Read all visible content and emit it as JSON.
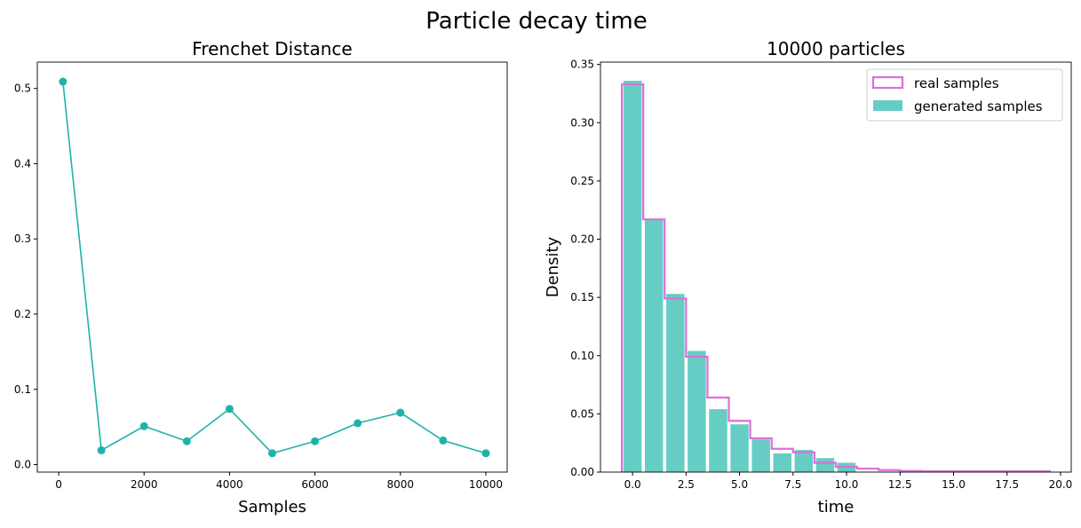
{
  "suptitle": "Particle decay time",
  "colors": {
    "teal": "#20b2aa",
    "hist": "#66cdc4",
    "step": "#da70d6"
  },
  "chart_data": [
    {
      "type": "line",
      "title": "Frenchet Distance",
      "xlabel": "Samples",
      "ylabel": "",
      "xlim": [
        -500,
        10500
      ],
      "ylim": [
        -0.01,
        0.535
      ],
      "xticks": [
        0,
        2000,
        4000,
        6000,
        8000,
        10000
      ],
      "yticks": [
        0.0,
        0.1,
        0.2,
        0.3,
        0.4,
        0.5
      ],
      "x": [
        100,
        1000,
        2000,
        3000,
        4000,
        5000,
        6000,
        7000,
        8000,
        9000,
        10000
      ],
      "y": [
        0.509,
        0.019,
        0.051,
        0.031,
        0.074,
        0.015,
        0.031,
        0.055,
        0.069,
        0.032,
        0.015
      ],
      "grid": false
    },
    {
      "type": "bar",
      "title": "10000 particles",
      "xlabel": "time",
      "ylabel": "Density",
      "xlim": [
        -1.5,
        20.5
      ],
      "ylim": [
        0,
        0.352
      ],
      "xticks": [
        0.0,
        2.5,
        5.0,
        7.5,
        10.0,
        12.5,
        15.0,
        17.5,
        20.0
      ],
      "yticks": [
        0.0,
        0.05,
        0.1,
        0.15,
        0.2,
        0.25,
        0.3,
        0.35
      ],
      "legend": "top-right",
      "series": [
        {
          "name": "real samples",
          "kind": "step",
          "x": [
            0,
            1,
            2,
            3,
            4,
            5,
            6,
            7,
            8,
            9,
            10,
            11,
            12,
            13,
            14,
            15,
            16,
            17,
            18,
            19
          ],
          "values": [
            0.333,
            0.217,
            0.149,
            0.099,
            0.064,
            0.044,
            0.029,
            0.02,
            0.017,
            0.008,
            0.0045,
            0.003,
            0.0017,
            0.001,
            0.0007,
            0.0007,
            0.0007,
            0.0007,
            0.0007,
            0.0007
          ]
        },
        {
          "name": "generated samples",
          "kind": "bar",
          "x": [
            0,
            1,
            2,
            3,
            4,
            5,
            6,
            7,
            8,
            9,
            10
          ],
          "values": [
            0.336,
            0.217,
            0.153,
            0.104,
            0.054,
            0.041,
            0.028,
            0.016,
            0.019,
            0.012,
            0.008
          ]
        }
      ],
      "grid": false
    }
  ]
}
